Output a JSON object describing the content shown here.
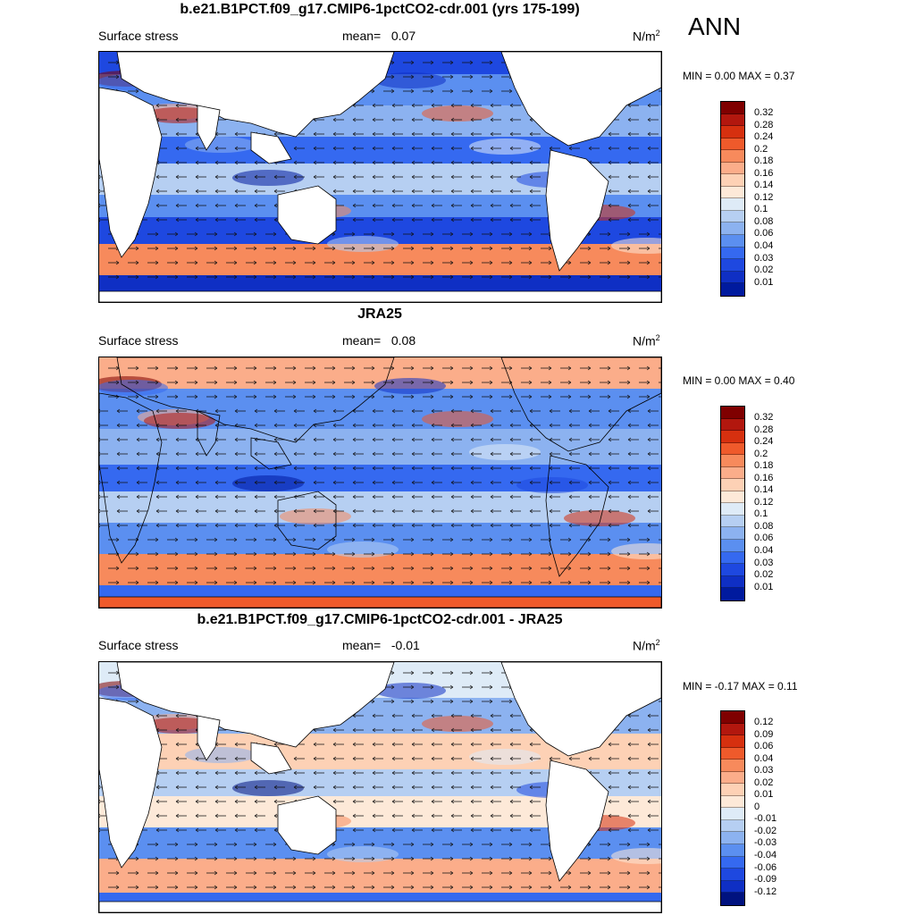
{
  "season": "ANN",
  "panels": [
    {
      "title": "b.e21.B1PCT.f09_g17.CMIP6-1pctCO2-cdr.001 (yrs 175-199)",
      "variable": "Surface stress",
      "mean_label": "mean=",
      "mean_value": "0.07",
      "units": "N/m",
      "units_exp": "2",
      "stats": "MIN =   0.00 MAX =   0.37",
      "colorbar_ticks": [
        "0.32",
        "0.28",
        "0.24",
        "0.2",
        "0.18",
        "0.16",
        "0.14",
        "0.12",
        "0.1",
        "0.08",
        "0.06",
        "0.04",
        "0.03",
        "0.02",
        "0.01"
      ]
    },
    {
      "title": "JRA25",
      "variable": "Surface stress",
      "mean_label": "mean=",
      "mean_value": "0.08",
      "units": "N/m",
      "units_exp": "2",
      "stats": "MIN =   0.00 MAX =   0.40",
      "colorbar_ticks": [
        "0.32",
        "0.28",
        "0.24",
        "0.2",
        "0.18",
        "0.16",
        "0.14",
        "0.12",
        "0.1",
        "0.08",
        "0.06",
        "0.04",
        "0.03",
        "0.02",
        "0.01"
      ]
    },
    {
      "title": "b.e21.B1PCT.f09_g17.CMIP6-1pctCO2-cdr.001 - JRA25",
      "variable": "Surface stress",
      "mean_label": "mean=",
      "mean_value": "-0.01",
      "units": "N/m",
      "units_exp": "2",
      "stats": "MIN =  -0.17 MAX =   0.11",
      "colorbar_ticks": [
        "0.12",
        "0.09",
        "0.06",
        "0.04",
        "0.03",
        "0.02",
        "0.01",
        "0",
        "-0.01",
        "-0.02",
        "-0.03",
        "-0.04",
        "-0.06",
        "-0.09",
        "-0.12"
      ]
    }
  ],
  "colors": {
    "seq_scale": [
      "#7f0000",
      "#b2170e",
      "#d6300f",
      "#ef5a2b",
      "#f78a5c",
      "#fbad8a",
      "#fdd1b5",
      "#fde9d8",
      "#deebf7",
      "#b6cff2",
      "#8cb2f0",
      "#5b8ff0",
      "#3569f0",
      "#1e48e0",
      "#0f2fc4",
      "#001a9e"
    ],
    "div_scale": [
      "#7f0000",
      "#b2170e",
      "#d6300f",
      "#ef5a2b",
      "#f78a5c",
      "#fbad8a",
      "#fdd1b5",
      "#fde9d8",
      "#deebf7",
      "#b6cff2",
      "#8cb2f0",
      "#5b8ff0",
      "#3569f0",
      "#1e48e0",
      "#0f2fc4",
      "#00127f"
    ]
  }
}
